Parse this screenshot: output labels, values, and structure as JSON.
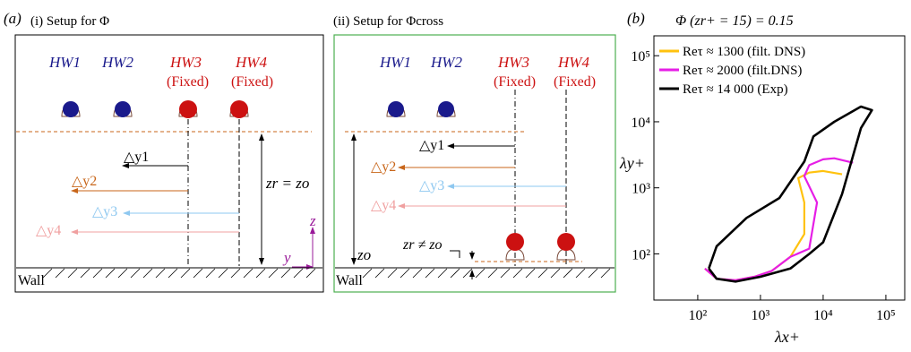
{
  "panel_a": {
    "label": "(a)",
    "sub_i": "(i) Setup for Φ",
    "sub_ii": "(ii) Setup for Φcross",
    "hw1": "HW1",
    "hw2": "HW2",
    "hw3": "HW3",
    "hw4": "HW4",
    "fixed": "(Fixed)",
    "dy1": "△y1",
    "dy2": "△y2",
    "dy3": "△y3",
    "dy4": "△y4",
    "zr_eq": "zr = zo",
    "zr_neq": "zr ≠ zo",
    "zo": "zo",
    "wall": "Wall",
    "axis_z": "z",
    "axis_y": "y"
  },
  "panel_b": {
    "label": "(b)",
    "title": "Φ (zr+ = 15) = 0.15",
    "xlabel": "λx+",
    "ylabel": "λy+",
    "xticks": [
      "10²",
      "10³",
      "10⁴",
      "10⁵"
    ],
    "yticks": [
      "10²",
      "10³",
      "10⁴",
      "10⁵"
    ],
    "legend": [
      {
        "label": "Reτ ≈ 1300 (filt. DNS)",
        "color": "#ffc20e"
      },
      {
        "label": "Reτ ≈ 2000 (filt.DNS)",
        "color": "#e61ee6"
      },
      {
        "label": "Reτ ≈ 14 000 (Exp)",
        "color": "#000000"
      }
    ]
  },
  "colors": {
    "blue": "#1a1a8c",
    "red": "#cc1111",
    "dy1": "#000000",
    "dy2": "#c8661a",
    "dy3": "#8ec8f0",
    "dy4": "#f0a0a0",
    "axis": "#9a1a9a",
    "box_ii": "#4caf50"
  },
  "chart_data": {
    "type": "line",
    "title": "Φ (zr+ = 15) = 0.15",
    "xlabel": "λx+",
    "ylabel": "λy+",
    "xscale": "log",
    "yscale": "log",
    "xlim": [
      20,
      200000
    ],
    "ylim": [
      20,
      200000
    ],
    "series": [
      {
        "name": "Reτ ≈ 1300 (filt. DNS)",
        "x": [
          130,
          200,
          400,
          800,
          1500,
          3000,
          5000,
          5000,
          4000,
          6000,
          10000,
          20000
        ],
        "y": [
          60,
          42,
          40,
          45,
          55,
          90,
          200,
          600,
          1400,
          1700,
          1800,
          1600
        ]
      },
      {
        "name": "Reτ ≈ 2000 (filt.DNS)",
        "x": [
          130,
          200,
          400,
          800,
          1500,
          3000,
          6000,
          8000,
          5000,
          6000,
          10000,
          15000,
          30000
        ],
        "y": [
          60,
          42,
          40,
          45,
          55,
          90,
          120,
          600,
          1500,
          2200,
          2700,
          2800,
          2400
        ]
      },
      {
        "name": "Reτ ≈ 14 000 (Exp)",
        "x": [
          150,
          200,
          400,
          1000,
          3000,
          6000,
          10000,
          20000,
          40000,
          60000,
          40000,
          15000,
          7000,
          5000,
          2000,
          600,
          200,
          150
        ],
        "y": [
          60,
          42,
          38,
          45,
          60,
          100,
          150,
          800,
          8000,
          15000,
          17000,
          10000,
          6000,
          2500,
          700,
          350,
          130,
          60
        ]
      }
    ]
  }
}
